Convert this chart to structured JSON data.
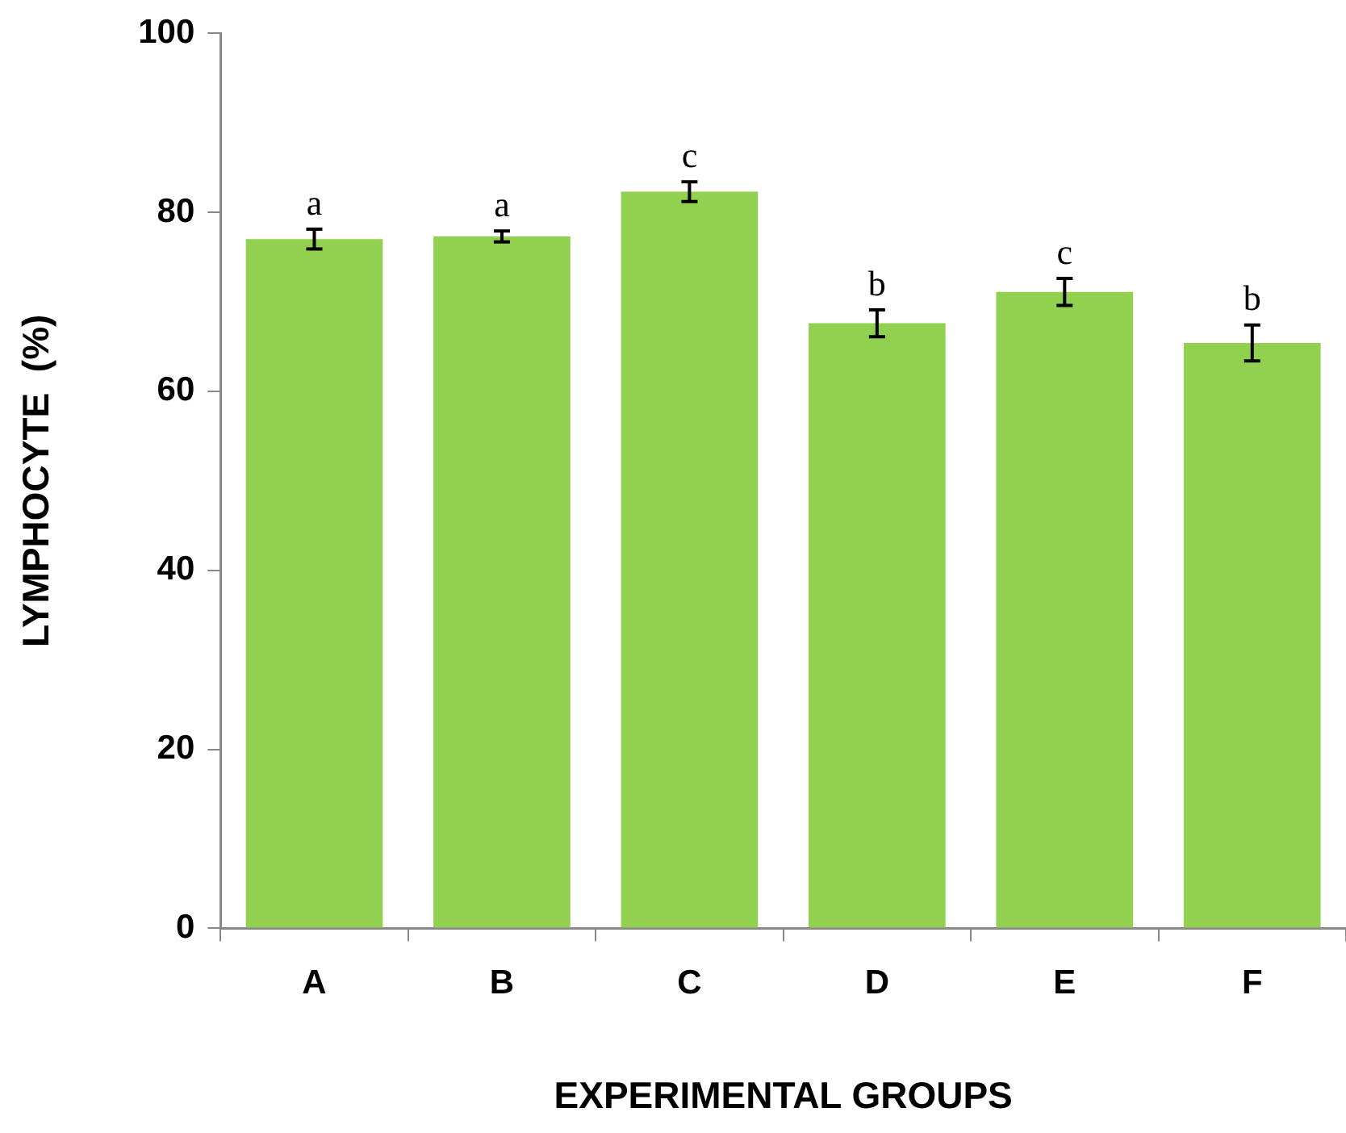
{
  "chart_data": {
    "type": "bar",
    "xlabel": "EXPERIMENTAL GROUPS",
    "ylabel": "LYMPHOCYTE  (%)",
    "categories": [
      "A",
      "B",
      "C",
      "D",
      "E",
      "F"
    ],
    "values": [
      77.0,
      77.3,
      82.3,
      67.6,
      71.1,
      65.4
    ],
    "errors": [
      1.1,
      0.6,
      1.1,
      1.5,
      1.5,
      2.0
    ],
    "color": "#92d050",
    "ylim": [
      0,
      100
    ],
    "yticks": [
      0,
      20,
      40,
      60,
      80,
      100
    ],
    "grid": false,
    "legend": false,
    "annotations": [
      {
        "text": "a",
        "x": "A",
        "y": 78.1
      },
      {
        "text": "a",
        "x": "B",
        "y": 77.9
      },
      {
        "text": "c",
        "x": "C",
        "y": 83.4
      },
      {
        "text": "b",
        "x": "D",
        "y": 69.1
      },
      {
        "text": "c",
        "x": "E",
        "y": 72.6
      },
      {
        "text": "b",
        "x": "F",
        "y": 67.4
      }
    ]
  }
}
